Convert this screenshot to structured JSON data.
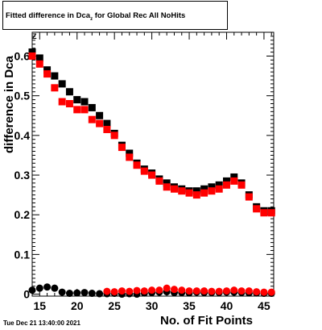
{
  "chart_data": {
    "type": "scatter",
    "title_main": "Fitted difference in Dca",
    "title_sub": "z",
    "title_rest": "for Global Rec All NoHits",
    "ylabel": "difference in Dca",
    "ylabel_sub": "Z",
    "xlabel": "No. of Fit Points",
    "xlim": [
      14,
      46.3
    ],
    "ylim": [
      -0.005,
      0.66
    ],
    "xticks": [
      15,
      20,
      25,
      30,
      35,
      40,
      45
    ],
    "yticks": [
      0,
      0.1,
      0.2,
      0.3,
      0.4,
      0.5,
      0.6
    ],
    "ytick_labels": [
      "0",
      "0.1",
      "0.2",
      "0.3",
      "0.4",
      "0.5",
      "0.6"
    ],
    "grid": false,
    "series": [
      {
        "marker": "square",
        "color": "#000000",
        "x": [
          14,
          15,
          16,
          17,
          18,
          19,
          20,
          21,
          22,
          23,
          24,
          25,
          26,
          27,
          28,
          29,
          30,
          31,
          32,
          33,
          34,
          35,
          36,
          37,
          38,
          39,
          40,
          41,
          42,
          43,
          44,
          45,
          46
        ],
        "values": [
          0.61,
          0.595,
          0.565,
          0.55,
          0.53,
          0.51,
          0.49,
          0.485,
          0.47,
          0.45,
          0.43,
          0.405,
          0.375,
          0.355,
          0.33,
          0.315,
          0.305,
          0.29,
          0.28,
          0.27,
          0.265,
          0.26,
          0.26,
          0.265,
          0.27,
          0.275,
          0.285,
          0.295,
          0.28,
          0.25,
          0.22,
          0.21,
          0.21
        ]
      },
      {
        "marker": "square",
        "color": "#ff0000",
        "x": [
          14,
          15,
          16,
          17,
          18,
          19,
          20,
          21,
          22,
          23,
          24,
          25,
          26,
          27,
          28,
          29,
          30,
          31,
          32,
          33,
          34,
          35,
          36,
          37,
          38,
          39,
          40,
          41,
          42,
          43,
          44,
          45,
          46
        ],
        "values": [
          0.6,
          0.58,
          0.555,
          0.52,
          0.485,
          0.48,
          0.465,
          0.465,
          0.44,
          0.43,
          0.415,
          0.4,
          0.37,
          0.345,
          0.325,
          0.31,
          0.3,
          0.285,
          0.27,
          0.265,
          0.26,
          0.255,
          0.25,
          0.255,
          0.26,
          0.265,
          0.275,
          0.285,
          0.275,
          0.245,
          0.215,
          0.205,
          0.205
        ]
      },
      {
        "marker": "circle",
        "color": "#000000",
        "x": [
          14,
          15,
          16,
          17,
          18,
          19,
          20,
          21,
          22,
          23,
          24,
          25,
          26,
          27,
          28,
          29,
          30,
          31,
          32,
          33,
          34,
          35,
          36,
          37,
          38,
          39,
          40,
          41,
          42,
          43,
          44,
          45,
          46
        ],
        "values": [
          0.01,
          0.015,
          0.018,
          0.015,
          0.005,
          0.002,
          0.003,
          0.004,
          0.002,
          0.001,
          0.001,
          0.002,
          0.0,
          0.001,
          0.0,
          0.003,
          0.004,
          0.005,
          0.006,
          0.004,
          0.004,
          0.003,
          0.005,
          0.004,
          0.004,
          0.004,
          0.005,
          0.005,
          0.004,
          0.003,
          0.003,
          0.002,
          0.002
        ]
      },
      {
        "marker": "circle",
        "color": "#ff0000",
        "x": [
          24,
          25,
          26,
          27,
          28,
          29,
          30,
          31,
          32,
          33,
          34,
          35,
          36,
          37,
          38,
          39,
          40,
          41,
          42,
          43,
          44,
          45,
          46
        ],
        "values": [
          0.007,
          0.006,
          0.008,
          0.007,
          0.009,
          0.008,
          0.01,
          0.01,
          0.015,
          0.012,
          0.01,
          0.008,
          0.008,
          0.008,
          0.007,
          0.007,
          0.008,
          0.01,
          0.008,
          0.008,
          0.006,
          0.005,
          0.005
        ]
      }
    ],
    "timestamp": "Tue Dec 21 13:40:00 2021"
  }
}
